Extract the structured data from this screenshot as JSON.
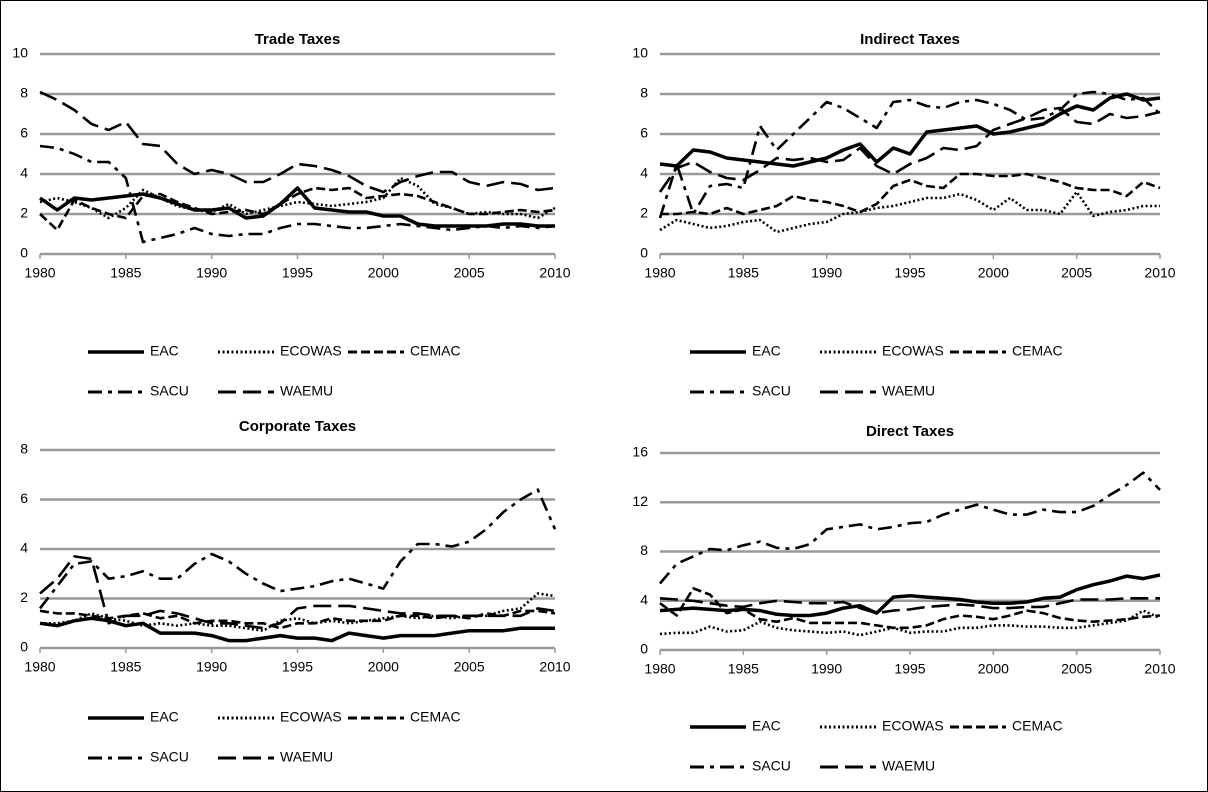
{
  "chart_data": [
    {
      "type": "line",
      "title": "Trade Taxes",
      "x": [
        1980,
        1981,
        1982,
        1983,
        1984,
        1985,
        1986,
        1987,
        1988,
        1989,
        1990,
        1991,
        1992,
        1993,
        1994,
        1995,
        1996,
        1997,
        1998,
        1999,
        2000,
        2001,
        2002,
        2003,
        2004,
        2005,
        2006,
        2007,
        2008,
        2009,
        2010
      ],
      "xlim": [
        1980,
        2010
      ],
      "xticks": [
        1980,
        1985,
        1990,
        1995,
        2000,
        2005,
        2010
      ],
      "ylim": [
        0,
        10
      ],
      "yticks": [
        0,
        2,
        4,
        6,
        8,
        10
      ],
      "grid": true,
      "series": [
        {
          "name": "EAC",
          "color": "#000000",
          "dash": "solid",
          "values": [
            2.8,
            2.2,
            2.8,
            2.7,
            2.8,
            2.9,
            3.0,
            2.8,
            2.5,
            2.2,
            2.2,
            2.3,
            1.8,
            1.9,
            2.5,
            3.3,
            2.3,
            2.2,
            2.1,
            2.1,
            1.9,
            1.9,
            1.5,
            1.4,
            1.4,
            1.4,
            1.4,
            1.5,
            1.5,
            1.4,
            1.4
          ]
        },
        {
          "name": "ECOWAS",
          "color": "#000000",
          "dash": "dotted",
          "values": [
            2.6,
            2.8,
            2.6,
            2.3,
            1.8,
            2.3,
            3.2,
            2.8,
            2.4,
            2.2,
            2.1,
            2.5,
            2.0,
            2.2,
            2.4,
            2.6,
            2.5,
            2.4,
            2.5,
            2.6,
            2.8,
            3.8,
            3.4,
            2.5,
            2.3,
            2.0,
            2.1,
            2.0,
            2.0,
            1.8,
            2.3
          ]
        },
        {
          "name": "CEMAC",
          "color": "#000000",
          "dash": "dashed",
          "values": [
            2.0,
            1.2,
            2.7,
            2.3,
            2.0,
            1.8,
            2.9,
            3.0,
            2.6,
            2.3,
            2.0,
            2.1,
            2.2,
            2.0,
            2.5,
            3.0,
            3.3,
            3.2,
            3.3,
            2.8,
            2.9,
            3.0,
            2.9,
            2.6,
            2.3,
            2.0,
            2.0,
            2.1,
            2.2,
            2.1,
            2.2
          ]
        },
        {
          "name": "SACU",
          "color": "#000000",
          "dash": "dashdot",
          "values": [
            5.4,
            5.3,
            5.0,
            4.6,
            4.6,
            3.8,
            0.6,
            0.8,
            1.0,
            1.3,
            1.0,
            0.9,
            1.0,
            1.0,
            1.3,
            1.5,
            1.5,
            1.4,
            1.3,
            1.3,
            1.4,
            1.5,
            1.4,
            1.3,
            1.2,
            1.3,
            1.4,
            1.3,
            1.4,
            1.3,
            1.4
          ]
        },
        {
          "name": "WAEMU",
          "color": "#000000",
          "dash": "longdash",
          "values": [
            8.1,
            7.7,
            7.2,
            6.5,
            6.2,
            6.6,
            5.5,
            5.4,
            4.5,
            4.0,
            4.2,
            4.0,
            3.6,
            3.6,
            4.0,
            4.5,
            4.4,
            4.2,
            3.9,
            3.4,
            3.1,
            3.6,
            3.9,
            4.1,
            4.1,
            3.6,
            3.4,
            3.6,
            3.5,
            3.2,
            3.3
          ]
        }
      ]
    },
    {
      "type": "line",
      "title": "Indirect Taxes",
      "x": [
        1980,
        1981,
        1982,
        1983,
        1984,
        1985,
        1986,
        1987,
        1988,
        1989,
        1990,
        1991,
        1992,
        1993,
        1994,
        1995,
        1996,
        1997,
        1998,
        1999,
        2000,
        2001,
        2002,
        2003,
        2004,
        2005,
        2006,
        2007,
        2008,
        2009,
        2010
      ],
      "xlim": [
        1980,
        2010
      ],
      "xticks": [
        1980,
        1985,
        1990,
        1995,
        2000,
        2005,
        2010
      ],
      "ylim": [
        0,
        10
      ],
      "yticks": [
        0,
        2,
        4,
        6,
        8,
        10
      ],
      "grid": true,
      "series": [
        {
          "name": "EAC",
          "color": "#000000",
          "dash": "solid",
          "values": [
            4.5,
            4.4,
            5.2,
            5.1,
            4.8,
            4.7,
            4.6,
            4.5,
            4.4,
            4.6,
            4.8,
            5.2,
            5.5,
            4.6,
            5.3,
            5.0,
            6.1,
            6.2,
            6.3,
            6.4,
            6.0,
            6.1,
            6.3,
            6.5,
            7.0,
            7.4,
            7.2,
            7.8,
            8.0,
            7.7,
            7.8
          ]
        },
        {
          "name": "ECOWAS",
          "color": "#000000",
          "dash": "dotted",
          "values": [
            1.2,
            1.7,
            1.5,
            1.3,
            1.4,
            1.6,
            1.7,
            1.1,
            1.3,
            1.5,
            1.6,
            2.0,
            2.1,
            2.3,
            2.4,
            2.6,
            2.8,
            2.8,
            3.0,
            2.7,
            2.2,
            2.8,
            2.2,
            2.2,
            2.0,
            3.1,
            1.9,
            2.1,
            2.2,
            2.4,
            2.4
          ]
        },
        {
          "name": "CEMAC",
          "color": "#000000",
          "dash": "dashed",
          "values": [
            2.0,
            2.0,
            2.1,
            2.0,
            2.3,
            2.0,
            2.2,
            2.4,
            2.9,
            2.7,
            2.6,
            2.4,
            2.1,
            2.5,
            3.4,
            3.7,
            3.4,
            3.3,
            4.0,
            4.0,
            3.9,
            3.9,
            4.0,
            3.8,
            3.6,
            3.3,
            3.2,
            3.2,
            2.9,
            3.6,
            3.3
          ]
        },
        {
          "name": "SACU",
          "color": "#000000",
          "dash": "dashdot",
          "values": [
            1.8,
            4.5,
            2.0,
            3.4,
            3.5,
            3.3,
            6.4,
            5.2,
            6.0,
            6.8,
            7.6,
            7.3,
            6.8,
            6.3,
            7.6,
            7.7,
            7.4,
            7.3,
            7.6,
            7.7,
            7.5,
            7.2,
            6.7,
            6.8,
            7.2,
            8.0,
            8.1,
            8.0,
            7.7,
            7.8,
            7.0
          ]
        },
        {
          "name": "WAEMU",
          "color": "#000000",
          "dash": "longdash",
          "values": [
            3.1,
            4.3,
            4.6,
            4.1,
            3.8,
            3.7,
            4.2,
            4.8,
            4.7,
            4.8,
            4.6,
            4.7,
            5.3,
            4.4,
            4.0,
            4.5,
            4.8,
            5.3,
            5.2,
            5.4,
            6.2,
            6.5,
            6.8,
            7.2,
            7.3,
            6.6,
            6.5,
            7.0,
            6.8,
            6.9,
            7.1
          ]
        }
      ]
    },
    {
      "type": "line",
      "title": "Corporate Taxes",
      "x": [
        1980,
        1981,
        1982,
        1983,
        1984,
        1985,
        1986,
        1987,
        1988,
        1989,
        1990,
        1991,
        1992,
        1993,
        1994,
        1995,
        1996,
        1997,
        1998,
        1999,
        2000,
        2001,
        2002,
        2003,
        2004,
        2005,
        2006,
        2007,
        2008,
        2009,
        2010
      ],
      "xlim": [
        1980,
        2010
      ],
      "xticks": [
        1980,
        1985,
        1990,
        1995,
        2000,
        2005,
        2010
      ],
      "ylim": [
        0,
        8
      ],
      "yticks": [
        0,
        2,
        4,
        6,
        8
      ],
      "grid": true,
      "series": [
        {
          "name": "EAC",
          "color": "#000000",
          "dash": "solid",
          "values": [
            1.0,
            0.9,
            1.1,
            1.2,
            1.1,
            0.9,
            1.0,
            0.6,
            0.6,
            0.6,
            0.5,
            0.3,
            0.3,
            0.4,
            0.5,
            0.4,
            0.4,
            0.3,
            0.6,
            0.5,
            0.4,
            0.5,
            0.5,
            0.5,
            0.6,
            0.7,
            0.7,
            0.7,
            0.8,
            0.8,
            0.8
          ]
        },
        {
          "name": "ECOWAS",
          "color": "#000000",
          "dash": "dotted",
          "values": [
            1.0,
            1.0,
            1.1,
            1.4,
            1.2,
            1.1,
            0.9,
            1.0,
            0.9,
            1.0,
            0.9,
            0.9,
            0.8,
            0.7,
            1.1,
            1.2,
            1.0,
            1.1,
            1.0,
            1.1,
            1.2,
            1.3,
            1.2,
            1.3,
            1.2,
            1.3,
            1.3,
            1.5,
            1.6,
            2.2,
            2.1
          ]
        },
        {
          "name": "CEMAC",
          "color": "#000000",
          "dash": "dashed",
          "values": [
            1.5,
            1.4,
            1.4,
            1.3,
            1.2,
            1.3,
            1.4,
            1.2,
            1.3,
            1.0,
            1.1,
            1.1,
            1.0,
            1.0,
            0.8,
            1.0,
            1.0,
            1.2,
            1.1,
            1.1,
            1.1,
            1.3,
            1.3,
            1.2,
            1.3,
            1.2,
            1.4,
            1.3,
            1.5,
            1.5,
            1.4
          ]
        },
        {
          "name": "SACU",
          "color": "#000000",
          "dash": "dashdot",
          "values": [
            1.6,
            2.5,
            3.4,
            3.5,
            2.8,
            2.9,
            3.1,
            2.8,
            2.8,
            3.4,
            3.8,
            3.5,
            3.0,
            2.6,
            2.3,
            2.4,
            2.5,
            2.7,
            2.8,
            2.6,
            2.4,
            3.5,
            4.2,
            4.2,
            4.1,
            4.3,
            4.8,
            5.5,
            6.0,
            6.4,
            4.8
          ]
        },
        {
          "name": "WAEMU",
          "color": "#000000",
          "dash": "longdash",
          "values": [
            2.2,
            2.8,
            3.7,
            3.6,
            1.0,
            1.3,
            1.3,
            1.5,
            1.4,
            1.2,
            1.0,
            1.0,
            0.9,
            0.8,
            1.0,
            1.6,
            1.7,
            1.7,
            1.7,
            1.6,
            1.5,
            1.4,
            1.4,
            1.3,
            1.3,
            1.3,
            1.3,
            1.3,
            1.3,
            1.6,
            1.5
          ]
        }
      ]
    },
    {
      "type": "line",
      "title": "Direct Taxes",
      "x": [
        1980,
        1981,
        1982,
        1983,
        1984,
        1985,
        1986,
        1987,
        1988,
        1989,
        1990,
        1991,
        1992,
        1993,
        1994,
        1995,
        1996,
        1997,
        1998,
        1999,
        2000,
        2001,
        2002,
        2003,
        2004,
        2005,
        2006,
        2007,
        2008,
        2009,
        2010
      ],
      "xlim": [
        1980,
        2010
      ],
      "xticks": [
        1980,
        1985,
        1990,
        1995,
        2000,
        2005,
        2010
      ],
      "ylim": [
        0,
        16
      ],
      "yticks": [
        0,
        4,
        8,
        12,
        16
      ],
      "grid": true,
      "series": [
        {
          "name": "EAC",
          "color": "#000000",
          "dash": "solid",
          "values": [
            3.2,
            3.3,
            3.4,
            3.3,
            3.2,
            3.3,
            3.2,
            2.9,
            2.8,
            2.8,
            3.0,
            3.4,
            3.6,
            3.0,
            4.3,
            4.4,
            4.3,
            4.2,
            4.1,
            3.9,
            3.8,
            3.8,
            3.9,
            4.2,
            4.3,
            4.9,
            5.3,
            5.6,
            6.0,
            5.8,
            6.1
          ]
        },
        {
          "name": "ECOWAS",
          "color": "#000000",
          "dash": "dotted",
          "values": [
            1.3,
            1.4,
            1.4,
            1.9,
            1.5,
            1.6,
            2.3,
            1.8,
            1.6,
            1.5,
            1.4,
            1.5,
            1.2,
            1.5,
            1.8,
            1.4,
            1.5,
            1.5,
            1.8,
            1.8,
            2.0,
            2.0,
            1.9,
            1.9,
            1.8,
            1.8,
            2.0,
            2.2,
            2.4,
            3.2,
            2.6
          ]
        },
        {
          "name": "CEMAC",
          "color": "#000000",
          "dash": "dashed",
          "values": [
            3.8,
            2.8,
            5.0,
            4.5,
            3.0,
            3.3,
            2.5,
            2.3,
            2.6,
            2.2,
            2.2,
            2.2,
            2.2,
            2.0,
            1.8,
            1.8,
            2.0,
            2.5,
            2.8,
            2.7,
            2.5,
            2.8,
            3.2,
            3.0,
            2.6,
            2.4,
            2.3,
            2.4,
            2.5,
            2.7,
            2.8
          ]
        },
        {
          "name": "SACU",
          "color": "#000000",
          "dash": "dashdot",
          "values": [
            5.4,
            7.0,
            7.6,
            8.2,
            8.1,
            8.5,
            8.8,
            8.3,
            8.2,
            8.6,
            9.8,
            10.0,
            10.2,
            9.8,
            10.0,
            10.3,
            10.4,
            11.0,
            11.4,
            11.8,
            11.4,
            11.0,
            11.0,
            11.4,
            11.2,
            11.2,
            11.7,
            12.6,
            13.4,
            14.4,
            13.0
          ]
        },
        {
          "name": "WAEMU",
          "color": "#000000",
          "dash": "longdash",
          "values": [
            4.2,
            4.1,
            4.0,
            3.8,
            3.6,
            3.5,
            3.8,
            4.0,
            3.9,
            3.8,
            3.8,
            3.9,
            3.4,
            3.0,
            3.2,
            3.3,
            3.5,
            3.6,
            3.7,
            3.6,
            3.4,
            3.4,
            3.5,
            3.5,
            3.8,
            4.1,
            4.1,
            4.1,
            4.2,
            4.2,
            4.2
          ]
        }
      ]
    }
  ]
}
